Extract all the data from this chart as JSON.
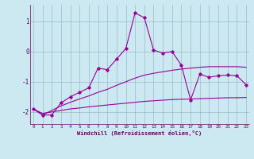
{
  "x_values": [
    0,
    1,
    2,
    3,
    4,
    5,
    6,
    7,
    8,
    9,
    10,
    11,
    12,
    13,
    14,
    15,
    16,
    17,
    18,
    19,
    20,
    21,
    22,
    23
  ],
  "line1_y": [
    -1.9,
    -2.1,
    -2.1,
    -1.7,
    -1.5,
    -1.35,
    -1.2,
    -0.55,
    -0.6,
    -0.25,
    0.1,
    1.28,
    1.12,
    0.05,
    -0.05,
    0.0,
    -0.45,
    -1.6,
    -0.75,
    -0.85,
    -0.8,
    -0.78,
    -0.8,
    -1.1
  ],
  "line2_y": [
    -1.9,
    -2.1,
    -1.95,
    -1.8,
    -1.68,
    -1.57,
    -1.47,
    -1.35,
    -1.25,
    -1.12,
    -1.0,
    -0.88,
    -0.78,
    -0.72,
    -0.67,
    -0.62,
    -0.58,
    -0.55,
    -0.52,
    -0.5,
    -0.5,
    -0.5,
    -0.5,
    -0.52
  ],
  "line3_y": [
    -1.9,
    -2.05,
    -2.0,
    -1.95,
    -1.9,
    -1.87,
    -1.83,
    -1.8,
    -1.77,
    -1.74,
    -1.71,
    -1.68,
    -1.65,
    -1.63,
    -1.61,
    -1.59,
    -1.58,
    -1.57,
    -1.56,
    -1.55,
    -1.54,
    -1.53,
    -1.53,
    -1.52
  ],
  "line_color": "#990099",
  "bg_color": "#cce8f0",
  "grid_color": "#99bbcc",
  "text_color": "#660066",
  "xlabel": "Windchill (Refroidissement éolien,°C)",
  "ylim": [
    -2.4,
    1.55
  ],
  "xlim": [
    -0.3,
    23.3
  ],
  "yticks": [
    -2,
    -1,
    0,
    1
  ],
  "xticks": [
    0,
    1,
    2,
    3,
    4,
    5,
    6,
    7,
    8,
    9,
    10,
    11,
    12,
    13,
    14,
    15,
    16,
    17,
    18,
    19,
    20,
    21,
    22,
    23
  ]
}
